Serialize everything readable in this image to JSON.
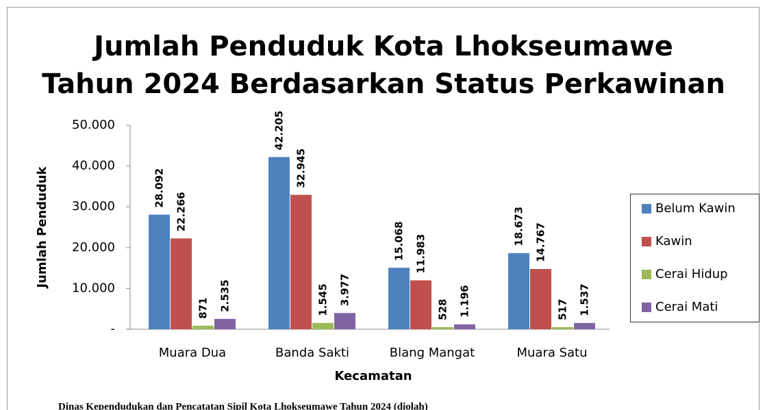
{
  "chart_data": {
    "type": "bar",
    "title": [
      "Jumlah Penduduk Kota Lhokseumawe",
      "Tahun 2024 Berdasarkan Status Perkawinan"
    ],
    "x_label": "Kecamatan",
    "y_label": "Jumlah Penduduk",
    "categories": [
      "Muara Dua",
      "Banda Sakti",
      "Blang Mangat",
      "Muara Satu"
    ],
    "series": [
      {
        "name": "Belum Kawin",
        "color": "#4f81bd",
        "values": [
          28092,
          42205,
          15068,
          18673
        ],
        "value_labels": [
          "28.092",
          "42.205",
          "15.068",
          "18.673"
        ]
      },
      {
        "name": "Kawin",
        "color": "#c0504d",
        "values": [
          22266,
          32945,
          11983,
          14767
        ],
        "value_labels": [
          "22.266",
          "32.945",
          "11.983",
          "14.767"
        ]
      },
      {
        "name": "Cerai Hidup",
        "color": "#9bbb59",
        "values": [
          871,
          1545,
          528,
          517
        ],
        "value_labels": [
          "871",
          "1.545",
          "528",
          "517"
        ]
      },
      {
        "name": "Cerai Mati",
        "color": "#8064a2",
        "values": [
          2535,
          3977,
          1196,
          1537
        ],
        "value_labels": [
          "2.535",
          "3.977",
          "1.196",
          "1.537"
        ]
      }
    ],
    "ylim": [
      0,
      50000
    ],
    "yticks": [
      {
        "value": 0,
        "label": "-"
      },
      {
        "value": 10000,
        "label": "10.000"
      },
      {
        "value": 20000,
        "label": "20.000"
      },
      {
        "value": 30000,
        "label": "30.000"
      },
      {
        "value": 40000,
        "label": "40.000"
      },
      {
        "value": 50000,
        "label": "50.000"
      }
    ],
    "legend": "right",
    "source": "Dinas Kependudukan dan Pencatatan Sipil Kota Lhokseumawe Tahun 2024 (diolah)"
  }
}
